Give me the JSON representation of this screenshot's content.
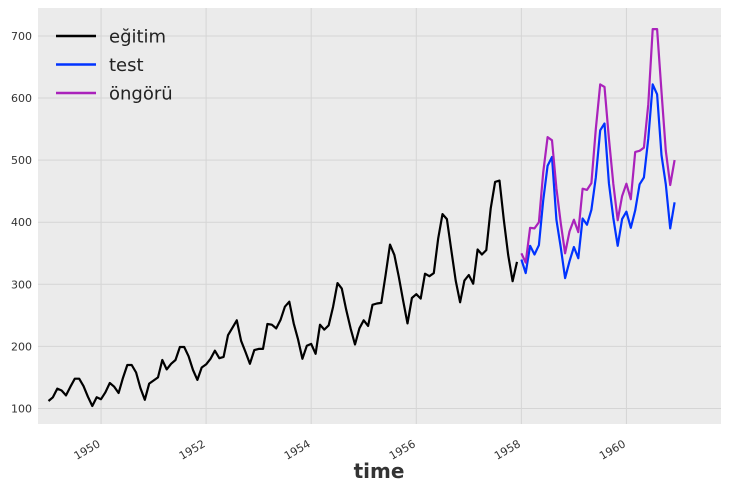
{
  "chart_data": {
    "type": "line",
    "title": "",
    "xlabel": "time",
    "ylabel": "",
    "xlim": [
      1948.8,
      1961.8
    ],
    "ylim": [
      75,
      745
    ],
    "grid": true,
    "legend": "top-left",
    "x_ticks": [
      1950,
      1952,
      1954,
      1956,
      1958,
      1960
    ],
    "x_tick_labels": [
      "1950",
      "1952",
      "1954",
      "1956",
      "1958",
      "1960"
    ],
    "y_ticks": [
      100,
      200,
      300,
      400,
      500,
      600,
      700
    ],
    "y_tick_labels": [
      "100",
      "200",
      "300",
      "400",
      "500",
      "600",
      "700"
    ],
    "series": [
      {
        "name": "eğitim",
        "color": "#000000",
        "x_start": 1949.0,
        "step": 0.0833333,
        "values": [
          112,
          118,
          132,
          129,
          121,
          135,
          148,
          148,
          136,
          119,
          104,
          118,
          115,
          126,
          141,
          135,
          125,
          149,
          170,
          170,
          158,
          133,
          114,
          140,
          145,
          150,
          178,
          163,
          172,
          178,
          199,
          199,
          184,
          162,
          146,
          166,
          171,
          180,
          193,
          181,
          183,
          218,
          230,
          242,
          209,
          191,
          172,
          194,
          196,
          196,
          236,
          235,
          229,
          243,
          264,
          272,
          237,
          211,
          180,
          201,
          204,
          188,
          235,
          227,
          234,
          264,
          302,
          293,
          259,
          229,
          203,
          229,
          242,
          233,
          267,
          269,
          270,
          315,
          364,
          347,
          312,
          274,
          237,
          278,
          284,
          277,
          317,
          313,
          318,
          374,
          413,
          405,
          355,
          306,
          271,
          306,
          315,
          301,
          356,
          348,
          355,
          422,
          465,
          467,
          404,
          347,
          305,
          336
        ]
      },
      {
        "name": "test",
        "color": "#0033ff",
        "x_start": 1958.0,
        "step": 0.0833333,
        "values": [
          340,
          318,
          362,
          348,
          363,
          435,
          491,
          505,
          404,
          359,
          310,
          337,
          360,
          342,
          406,
          396,
          420,
          472,
          548,
          559,
          463,
          407,
          362,
          405,
          417,
          391,
          419,
          461,
          472,
          535,
          622,
          606,
          508,
          461,
          390,
          432
        ]
      },
      {
        "name": "öngörü",
        "color": "#aa22bb",
        "x_start": 1958.0,
        "step": 0.0833333,
        "values": [
          350,
          335,
          391,
          390,
          400,
          480,
          537,
          532,
          455,
          398,
          350,
          385,
          404,
          384,
          454,
          452,
          463,
          550,
          622,
          618,
          535,
          462,
          403,
          442,
          462,
          437,
          513,
          515,
          520,
          590,
          711,
          711,
          610,
          515,
          460,
          500
        ]
      }
    ]
  }
}
